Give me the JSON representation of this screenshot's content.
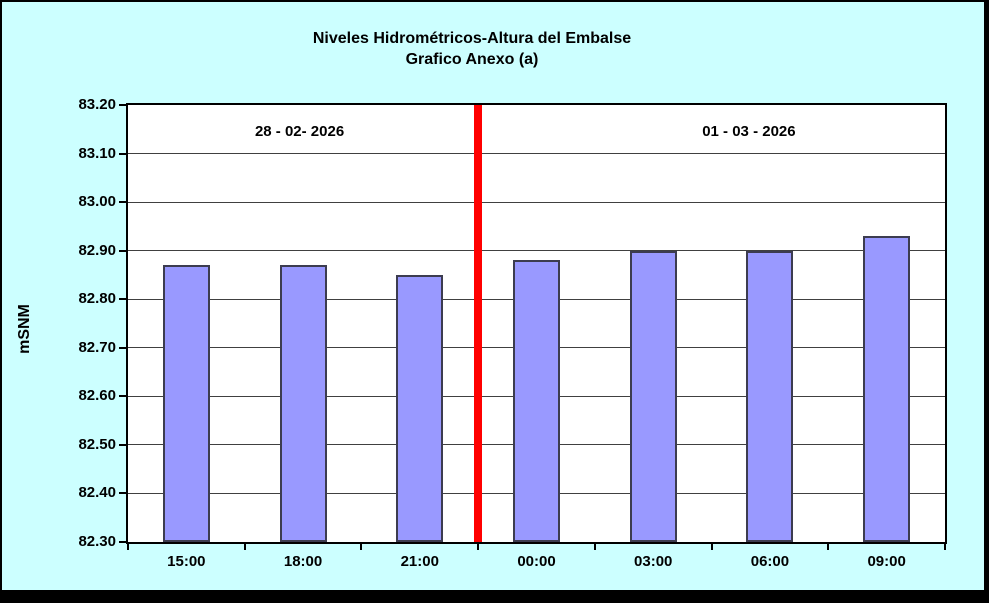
{
  "window": {
    "background_color": "#CCFFFF",
    "frame_color": "#000000"
  },
  "chart_data": {
    "type": "bar",
    "title_line1": "Niveles Hidrométricos-Altura del Embalse",
    "title_line2": "Grafico Anexo (a)",
    "ylabel": "mSNM",
    "xlabel": "",
    "categories": [
      "15:00",
      "18:00",
      "21:00",
      "00:00",
      "03:00",
      "06:00",
      "09:00"
    ],
    "values": [
      82.87,
      82.87,
      82.85,
      82.88,
      82.9,
      82.9,
      82.93
    ],
    "ylim": [
      82.3,
      83.2
    ],
    "ytick_step": 0.1,
    "ytick_labels": [
      "83.20",
      "83.10",
      "83.00",
      "82.90",
      "82.80",
      "82.70",
      "82.60",
      "82.50",
      "82.40",
      "82.30"
    ],
    "grid": true,
    "legend": "none",
    "plot_background": "#FFFFFF",
    "bar_color": "#9999FF",
    "bar_border_color": "#3C3C50",
    "grid_color": "#404040",
    "annotations": [
      {
        "text": "28 - 02- 2026",
        "side": "left"
      },
      {
        "text": "01 - 03 - 2026",
        "side": "right"
      }
    ],
    "divider": {
      "color": "#FF0000",
      "after_category_index": 2
    }
  }
}
